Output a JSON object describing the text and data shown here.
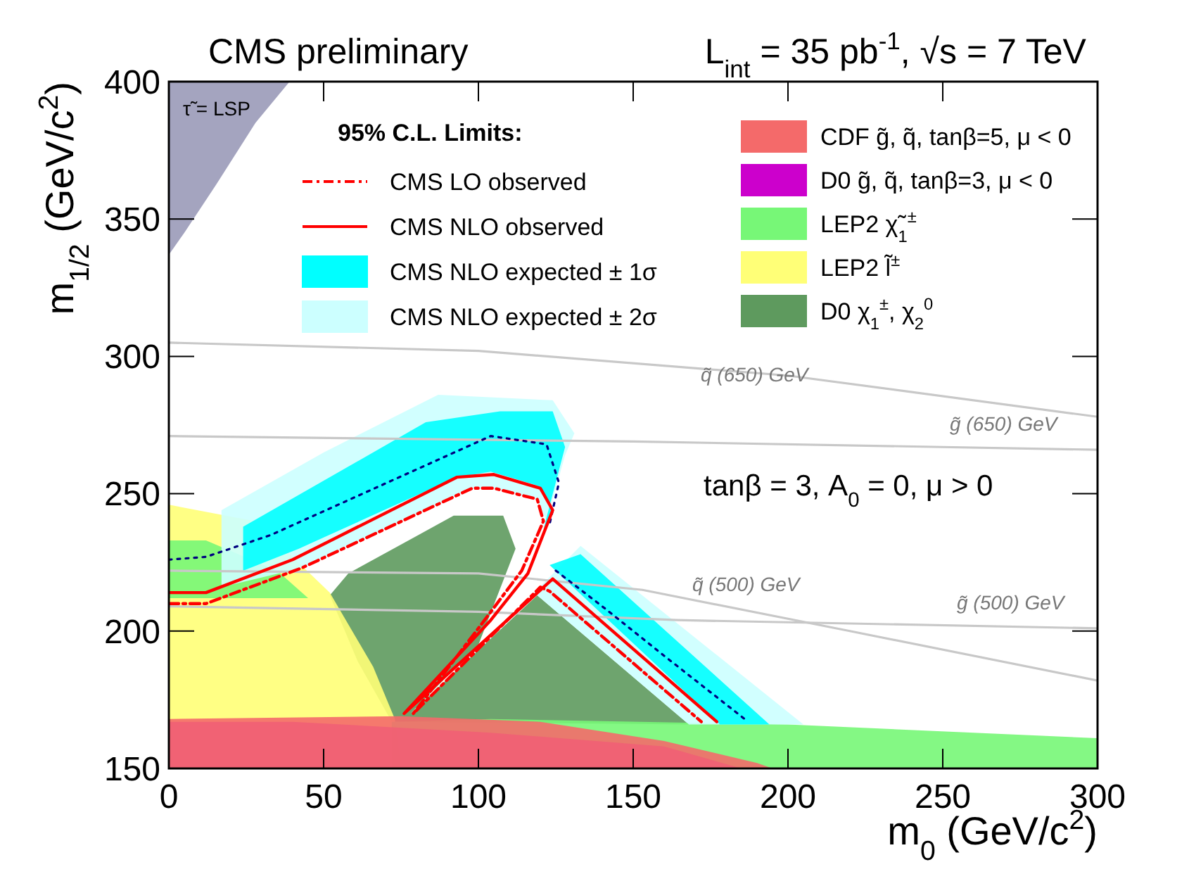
{
  "chart_data": {
    "type": "area",
    "title": "CMS preliminary",
    "subtitle": "L$_{int}$ = 35 pb$^{-1}$, √s = 7 TeV",
    "xlabel": "m$_{0}$ (GeV/c$^{2}$)",
    "ylabel": "m$_{1/2}$ (GeV/c$^{2}$)",
    "legend_title": "95% C.L. Limits:",
    "legend": "top",
    "grid": false,
    "xlim": [
      0,
      300
    ],
    "ylim": [
      150,
      400
    ],
    "xticks": [
      0,
      50,
      100,
      150,
      200,
      250,
      300
    ],
    "yticks": [
      150,
      200,
      250,
      300,
      350,
      400
    ],
    "annotations": [
      "tanβ = 3, A$_{0}$ = 0, μ > 0",
      "τ̃ = LSP",
      "q̃ (650) GeV",
      "g̃ (650) GeV",
      "q̃ (500) GeV",
      "g̃ (500) GeV"
    ],
    "series": [
      {
        "type": "line",
        "name": "CMS LO observed",
        "color": "#ff0000",
        "line_style": "dashed",
        "x": [
          0,
          12,
          43,
          98,
          105,
          119,
          121,
          114,
          102,
          79,
          120,
          123,
          172
        ],
        "values": [
          210,
          210,
          223,
          252,
          252,
          248,
          240,
          222,
          204,
          170,
          216,
          214.5,
          167
        ]
      },
      {
        "type": "line",
        "name": "CMS NLO observed",
        "color": "#ff0000",
        "line_style": "solid",
        "x": [
          0,
          12,
          40,
          93,
          105,
          120,
          124,
          116,
          104,
          76,
          124,
          177
        ],
        "values": [
          214,
          214,
          226,
          256,
          257,
          252,
          244,
          221,
          204,
          170,
          219,
          167
        ]
      },
      {
        "name": "CMS NLO expected ± 1σ",
        "color": "#00ffff",
        "x": [
          24,
          83,
          107,
          124,
          128,
          121,
          124,
          119,
          104,
          93,
          42,
          24,
          null,
          123,
          133,
          194,
          178
        ],
        "values": [
          238,
          276,
          280,
          280,
          267,
          237,
          244,
          253,
          258,
          256,
          230,
          222,
          null,
          224,
          228,
          166,
          166
        ]
      },
      {
        "name": "CMS NLO expected ± 2σ",
        "color": "#ccffff",
        "x": [
          17,
          50,
          87,
          124,
          131,
          128,
          122,
          119,
          105,
          98,
          43,
          17,
          null,
          118,
          133,
          205,
          168
        ],
        "values": [
          244,
          265,
          286,
          284,
          272,
          264,
          240,
          248,
          252,
          252,
          223,
          216,
          null,
          214,
          231,
          166,
          166
        ]
      },
      {
        "name": "CDF g̃, q̃, tanβ=5, μ < 0",
        "color": "#f46a6a",
        "x": [
          0,
          75,
          120,
          160,
          190,
          195,
          0
        ],
        "values": [
          168,
          169,
          167,
          160,
          152,
          150,
          150
        ]
      },
      {
        "name": "D0 g̃, q̃, tanβ=3, μ < 0",
        "color": "#cc00cc",
        "x": [
          0,
          40,
          104,
          160,
          185,
          0
        ],
        "values": [
          167,
          167,
          163,
          158,
          150,
          150
        ]
      },
      {
        "name": "LEP2 χ̃$_{1}$$^{±}$",
        "color": "#77f777",
        "x": [
          0,
          12,
          35,
          45,
          12,
          0,
          null,
          72,
          104,
          200,
          300,
          300,
          72
        ],
        "values": [
          233,
          233,
          222,
          212,
          212,
          212,
          null,
          167,
          168,
          166,
          161,
          150,
          150
        ]
      },
      {
        "name": "LEP2 l̃$^{±}$",
        "color": "#ffff77",
        "x": [
          0,
          28,
          52,
          66,
          73,
          75,
          0
        ],
        "values": [
          246,
          240,
          214,
          187,
          168,
          150,
          150
        ]
      },
      {
        "name": "D0 χ$_{1}$$^{±}$, χ$_{2}$$^{0}$",
        "color": "#5e9a5e",
        "x": [
          72,
          61,
          52,
          58,
          92,
          108,
          112,
          100,
          78,
          119,
          168
        ],
        "values": [
          167,
          189,
          213,
          221,
          242,
          242,
          230,
          195,
          170,
          213,
          166
        ]
      },
      {
        "type": "line",
        "color": "#000080",
        "line_style": "dotted",
        "x": [
          0,
          12,
          33,
          104,
          122,
          126,
          123
        ],
        "values": [
          226,
          227,
          235,
          271,
          268,
          254,
          239
        ]
      },
      {
        "type": "line",
        "color": "#000080",
        "line_style": "dotted",
        "x": [
          125,
          140,
          160,
          186
        ],
        "values": [
          222,
          209,
          191,
          168
        ]
      },
      {
        "color": "#9a9ab8",
        "x": [
          0,
          5,
          15,
          28,
          39,
          0
        ],
        "values": [
          337,
          345,
          362,
          385,
          400,
          400
        ]
      },
      {
        "type": "line",
        "color": "#c8c8c8",
        "line_style": "solid",
        "x": [
          0,
          100,
          200,
          300
        ],
        "values": [
          305,
          302,
          293,
          278
        ]
      },
      {
        "type": "line",
        "color": "#c8c8c8",
        "line_style": "solid",
        "x": [
          0,
          150,
          300
        ],
        "values": [
          271,
          269,
          266
        ]
      },
      {
        "type": "line",
        "color": "#c8c8c8",
        "line_style": "solid",
        "x": [
          0,
          100,
          153,
          220,
          300
        ],
        "values": [
          222,
          221,
          215,
          200,
          182
        ]
      },
      {
        "type": "line",
        "color": "#c8c8c8",
        "line_style": "solid",
        "x": [
          0,
          100,
          164,
          300
        ],
        "values": [
          209,
          207,
          204,
          201
        ]
      }
    ]
  }
}
